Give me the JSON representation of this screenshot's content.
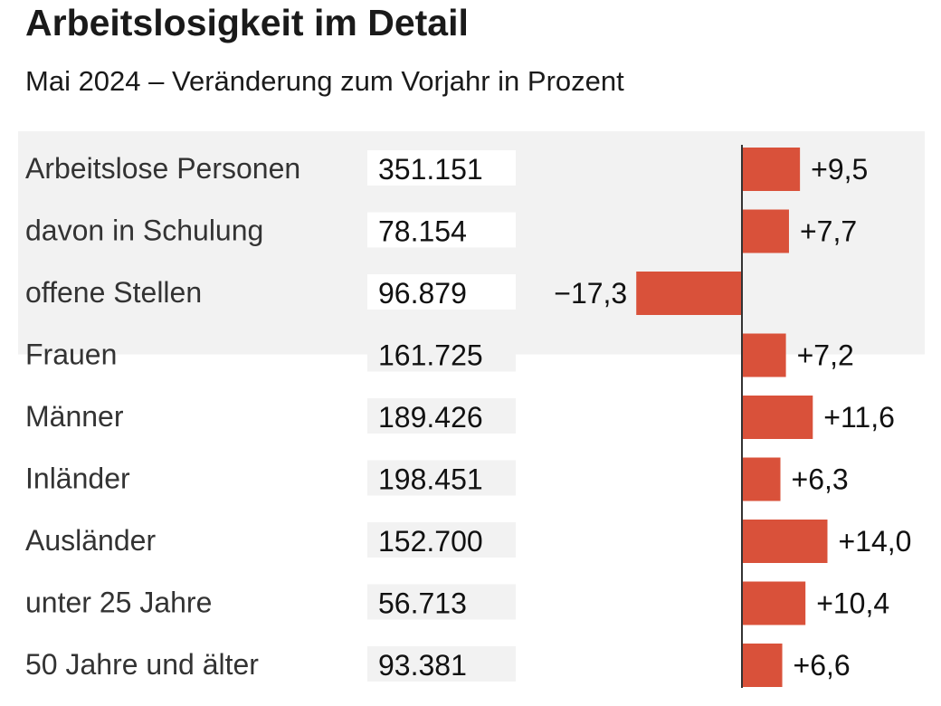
{
  "chart_data": {
    "type": "bar",
    "orientation": "horizontal",
    "title": "Arbeitslosigkeit im Detail",
    "subtitle": "Mai 2024 – Veränderung zum Vorjahr in Prozent",
    "categories": [
      "Arbeitslose Personen",
      "davon in Schulung",
      "offene Stellen",
      "Frauen",
      "Männer",
      "Inländer",
      "Ausländer",
      "unter 25 Jahre",
      "50 Jahre und älter"
    ],
    "absolute_values": [
      "351.151",
      "78.154",
      "96.879",
      "161.725",
      "189.426",
      "198.451",
      "152.700",
      "56.713",
      "93.381"
    ],
    "values": [
      9.5,
      7.7,
      -17.3,
      7.2,
      11.6,
      6.3,
      14.0,
      10.4,
      6.6
    ],
    "value_labels": [
      "+9,5",
      "+7,7",
      "−17,3",
      "+7,2",
      "+11,6",
      "+6,3",
      "+14,0",
      "+10,4",
      "+6,6"
    ],
    "highlighted_rows": 3,
    "colors": {
      "bar": "#d9513a",
      "highlight_bg": "#f2f2f2",
      "box_bg": "#f2f2f2"
    }
  }
}
